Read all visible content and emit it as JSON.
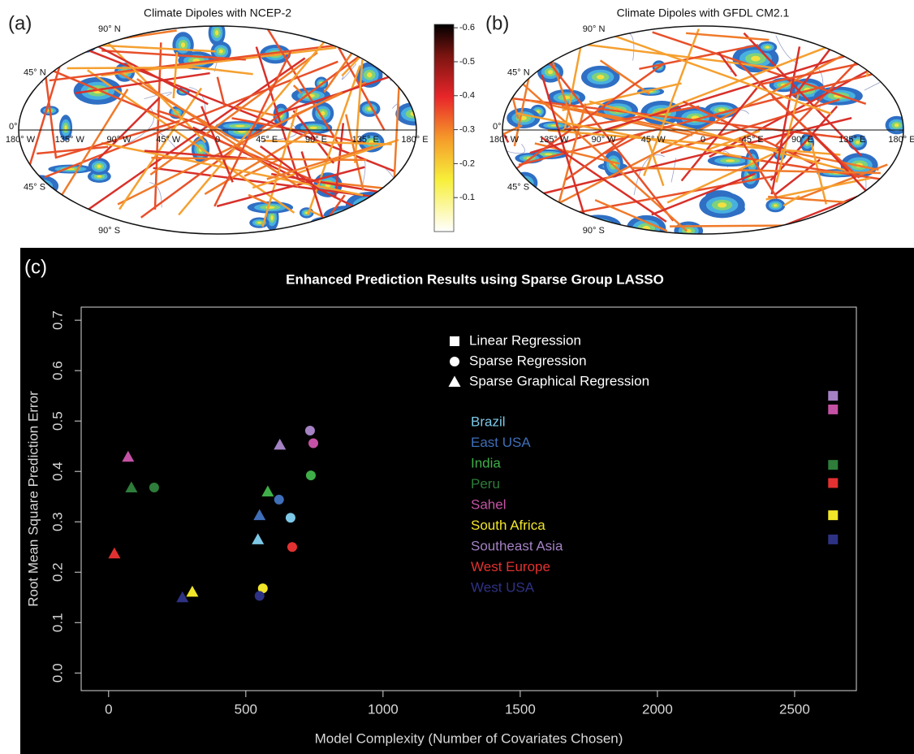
{
  "chart_data": [
    {
      "type": "map",
      "panel": "(a)",
      "title": "Climate Dipoles with NCEP-2",
      "lon_labels": [
        "180° W",
        "135° W",
        "90° W",
        "45° W",
        "0",
        "45° E",
        "90° E",
        "135° E",
        "180° E"
      ],
      "lat_labels": [
        "90° N",
        "45° N",
        "0°",
        "45° S",
        "90° S"
      ]
    },
    {
      "type": "map",
      "panel": "(b)",
      "title": "Climate Dipoles with GFDL CM2.1",
      "lon_labels": [
        "180° W",
        "135° W",
        "90° W",
        "45° W",
        "0",
        "45° E",
        "90° E",
        "135° E",
        "180° E"
      ],
      "lat_labels": [
        "90° N",
        "45° N",
        "0°",
        "45° S",
        "90° S"
      ]
    },
    {
      "type": "colorbar",
      "ylim": [
        0,
        -0.61
      ],
      "yticks": [
        -0.6,
        -0.5,
        -0.4,
        -0.3,
        -0.2,
        -0.1
      ]
    },
    {
      "type": "scatter",
      "panel": "(c)",
      "title": "Enhanced Prediction Results using Sparse Group LASSO",
      "x_label": "Model Complexity (Number of Covariates Chosen)",
      "y_label": "Root Mean Square Prediction Error",
      "xlim": [
        -100,
        2725
      ],
      "ylim": [
        -0.035,
        0.726
      ],
      "xticks": [
        0,
        500,
        1000,
        1500,
        2000,
        2500
      ],
      "yticks": [
        {
          "value": 0,
          "label": "0.0"
        },
        0.1,
        0.2,
        0.3,
        0.4,
        0.5,
        0.6,
        0.7
      ],
      "methods": [
        "Linear Regression",
        "Sparse Regression",
        "Sparse Graphical Regression"
      ],
      "markers": [
        "square",
        "circle",
        "triangle"
      ],
      "series": [
        {
          "name": "Brazil",
          "color": "#7cc8e6",
          "x": [
            null,
            663,
            544
          ],
          "values": [
            null,
            0.308,
            0.265
          ]
        },
        {
          "name": "East USA",
          "color": "#3f6fb8",
          "x": [
            null,
            621,
            550
          ],
          "values": [
            null,
            0.344,
            0.313
          ]
        },
        {
          "name": "India",
          "color": "#3fae49",
          "x": [
            null,
            737,
            580
          ],
          "values": [
            null,
            0.392,
            0.36
          ]
        },
        {
          "name": "Peru",
          "color": "#2e7d3a",
          "x": [
            2640,
            166,
            83
          ],
          "values": [
            0.413,
            0.368,
            0.368
          ]
        },
        {
          "name": "Sahel",
          "color": "#c452a4",
          "x": [
            2640,
            746,
            71
          ],
          "values": [
            0.523,
            0.456,
            0.429
          ]
        },
        {
          "name": "South Africa",
          "color": "#f2e629",
          "x": [
            2640,
            562,
            305
          ],
          "values": [
            0.313,
            0.168,
            0.161
          ]
        },
        {
          "name": "Southeast Asia",
          "color": "#a482c4",
          "x": [
            2640,
            734,
            624
          ],
          "values": [
            0.55,
            0.481,
            0.453
          ]
        },
        {
          "name": "West Europe",
          "color": "#e33131",
          "x": [
            2640,
            669,
            21
          ],
          "values": [
            0.377,
            0.25,
            0.237
          ]
        },
        {
          "name": "West USA",
          "color": "#2e3284",
          "x": [
            2640,
            550,
            269
          ],
          "values": [
            0.265,
            0.153,
            0.15
          ]
        }
      ]
    }
  ]
}
